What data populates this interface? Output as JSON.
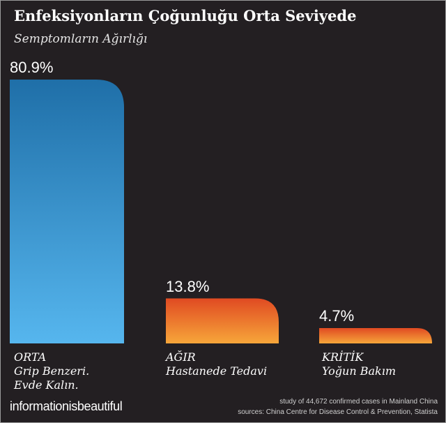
{
  "title": "Enfeksiyonların Çoğunluğu Orta Seviyede",
  "subtitle": "Semptomların Ağırlığı",
  "brand": "informationisbeautiful",
  "source": {
    "line1": "study of 44,672 confirmed cases in Mainland China",
    "line2": "sources: China Centre for Disease Control & Prevention, Statista"
  },
  "colors": {
    "background": "#231f22",
    "bar1_top": "#1f6fa8",
    "bar1_bottom": "#56b6ee",
    "bar_orange_top": "#e04a22",
    "bar_orange_bottom": "#f7a63a"
  },
  "chart_data": {
    "type": "bar",
    "categories": [
      "ORTA",
      "AĞIR",
      "KRİTİK"
    ],
    "values": [
      80.9,
      13.8,
      4.7
    ],
    "value_labels": [
      "80.9%",
      "13.8%",
      "4.7%"
    ],
    "category_descriptions": [
      [
        "Grip Benzeri.",
        "Evde Kalın."
      ],
      [
        "Hastanede Tedavi"
      ],
      [
        "Yoğun Bakım"
      ]
    ],
    "title": "Enfeksiyonların Çoğunluğu Orta Seviyede",
    "subtitle": "Semptomların Ağırlığı",
    "xlabel": "",
    "ylabel": "",
    "unit": "%",
    "ylim": [
      0,
      100
    ],
    "grid": false,
    "legend": "none"
  }
}
